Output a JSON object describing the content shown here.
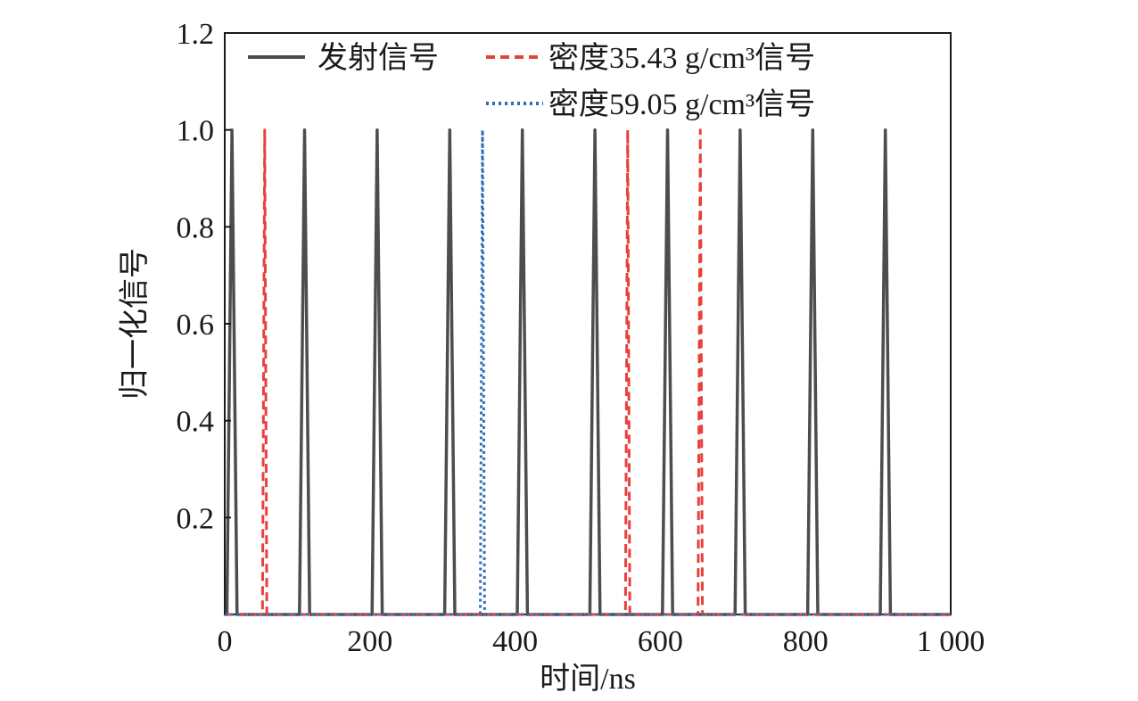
{
  "chart_data": {
    "type": "line",
    "xlabel": "时间/ns",
    "ylabel": "归一化信号",
    "xlim": [
      0,
      1000
    ],
    "ylim": [
      0,
      1.2
    ],
    "x_ticks": [
      0,
      200,
      400,
      600,
      800,
      1000
    ],
    "x_tick_labels": [
      "0",
      "200",
      "400",
      "600",
      "800",
      "1 000"
    ],
    "y_ticks": [
      0.2,
      0.4,
      0.6,
      0.8,
      1.0,
      1.2
    ],
    "y_tick_labels": [
      "0.2",
      "0.4",
      "0.6",
      "0.8",
      "1.0",
      "1.2"
    ],
    "grid": false,
    "legend_position": "top",
    "series": [
      {
        "name": "发射信号",
        "color": "#4d4d4d",
        "style": "solid",
        "peak_centers": [
          10,
          110,
          210,
          310,
          410,
          510,
          610,
          710,
          810,
          910
        ],
        "peak_value": 1.0,
        "pulse_half_width": 7
      },
      {
        "name": "密度35.43 g/cm³信号",
        "color": "#e8413b",
        "style": "dashed",
        "peak_centers": [
          55,
          555,
          655
        ],
        "peak_value": 1.0,
        "pulse_half_width": 3
      },
      {
        "name": "密度59.05 g/cm³信号",
        "color": "#2e6db4",
        "style": "dotted",
        "peak_centers": [
          355
        ],
        "peak_value": 1.0,
        "pulse_half_width": 3
      }
    ]
  }
}
